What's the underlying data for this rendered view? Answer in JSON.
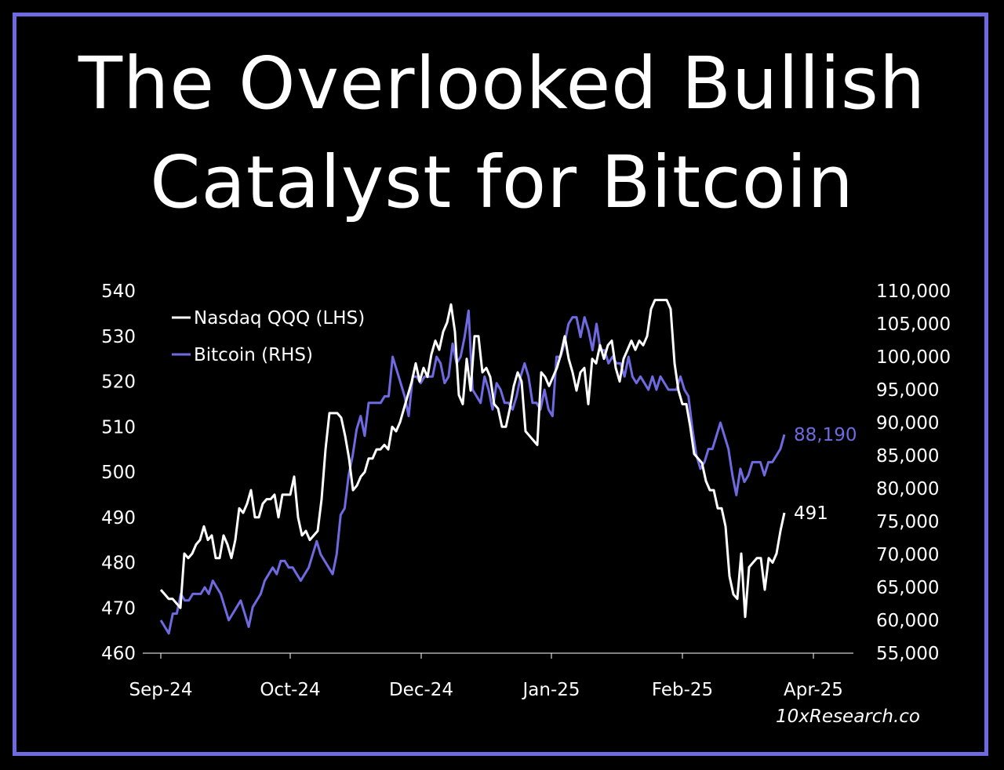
{
  "title_line1": "The Overlooked Bullish",
  "title_line2": "Catalyst for Bitcoin",
  "source": "10xResearch.co",
  "colors": {
    "frame": "#6f6ae0",
    "nasdaq": "#ffffff",
    "bitcoin": "#6f6ae0",
    "background": "#000000"
  },
  "chart_data": {
    "type": "line",
    "title": "",
    "x_tick_labels": [
      "Sep-24",
      "Oct-24",
      "Dec-24",
      "Jan-25",
      "Feb-25",
      "Apr-25"
    ],
    "left_axis": {
      "ylim": [
        460,
        540
      ],
      "ticks": [
        "540",
        "530",
        "520",
        "510",
        "500",
        "490",
        "480",
        "470",
        "460"
      ]
    },
    "right_axis": {
      "ylim": [
        55000,
        110000
      ],
      "ticks": [
        "110,000",
        "105,000",
        "100,000",
        "95,000",
        "90,000",
        "85,000",
        "80,000",
        "75,000",
        "70,000",
        "65,000",
        "60,000",
        "55,000"
      ]
    },
    "series": [
      {
        "name": "Nasdaq QQQ (LHS)",
        "axis": "left",
        "end_label": "491",
        "values": [
          474,
          473,
          472,
          472,
          471,
          470,
          482,
          481,
          482,
          484,
          485,
          488,
          485,
          486,
          481,
          481,
          486,
          484,
          481,
          485,
          492,
          491,
          493,
          496,
          490,
          490,
          493,
          494,
          494,
          495,
          490,
          495,
          495,
          495,
          499,
          490,
          486,
          487,
          485,
          486,
          487,
          494,
          505,
          513,
          513,
          513,
          512,
          508,
          503,
          496,
          497,
          499,
          500,
          503,
          503,
          505,
          505,
          506,
          505,
          510,
          509,
          511,
          514,
          517,
          520,
          524,
          520,
          523,
          521,
          526,
          529,
          527,
          531,
          533,
          537,
          531,
          517,
          515,
          525,
          518,
          530,
          530,
          522,
          523,
          521,
          515,
          514,
          510,
          510,
          514,
          519,
          522,
          520,
          509,
          508,
          507,
          506,
          522,
          521,
          519,
          521,
          523,
          526,
          530,
          525,
          522,
          518,
          522,
          523,
          515,
          525,
          524,
          528,
          525,
          528,
          529,
          523,
          520,
          525,
          527,
          529,
          527,
          529,
          528,
          530,
          536,
          538,
          538,
          538,
          538,
          536,
          524,
          518,
          515,
          515,
          510,
          504,
          503,
          502,
          498,
          496,
          496,
          492,
          492,
          488,
          477,
          473,
          472,
          482,
          468,
          479,
          480,
          481,
          481,
          474,
          481,
          480,
          482,
          487,
          491
        ],
        "ylim_note": "left"
      },
      {
        "name": "Bitcoin (RHS)",
        "axis": "right",
        "end_label": "88,190",
        "values": [
          60000,
          59000,
          58000,
          61000,
          61000,
          64000,
          63000,
          63000,
          64000,
          64000,
          64000,
          65000,
          64000,
          66000,
          65000,
          64000,
          62000,
          60000,
          61000,
          62000,
          63000,
          61000,
          59000,
          62000,
          63000,
          64000,
          66000,
          67000,
          68000,
          67000,
          69000,
          69000,
          68000,
          68000,
          67000,
          66000,
          67000,
          68000,
          70000,
          72000,
          70000,
          69000,
          68000,
          67000,
          70000,
          76000,
          77000,
          82000,
          85000,
          89000,
          91000,
          88000,
          93000,
          93000,
          93000,
          93000,
          94000,
          94000,
          100000,
          98000,
          96000,
          94000,
          91000,
          97000,
          97000,
          96000,
          97000,
          97000,
          97000,
          100000,
          99000,
          96000,
          97000,
          102000,
          99000,
          100000,
          103000,
          107000,
          95000,
          94000,
          93000,
          97000,
          95000,
          92000,
          96000,
          95000,
          93000,
          93000,
          92000,
          94000,
          97000,
          99000,
          97000,
          93000,
          93000,
          92000,
          95000,
          92000,
          91000,
          100000,
          100000,
          102000,
          105000,
          106000,
          106000,
          103000,
          106000,
          104000,
          101000,
          105000,
          101000,
          101000,
          99000,
          100000,
          99000,
          99000,
          97000,
          100000,
          97000,
          96000,
          97000,
          96000,
          95000,
          97000,
          95000,
          97000,
          96000,
          95000,
          95000,
          95000,
          97000,
          95000,
          94000,
          89000,
          85000,
          83000,
          84000,
          86000,
          86000,
          88000,
          90000,
          88000,
          86000,
          82000,
          79000,
          83000,
          81000,
          82000,
          84000,
          84000,
          84000,
          82000,
          84000,
          84000,
          85000,
          86000,
          88190
        ],
        "ylim_note": "right"
      }
    ],
    "grid": false,
    "legend": "top-left"
  }
}
